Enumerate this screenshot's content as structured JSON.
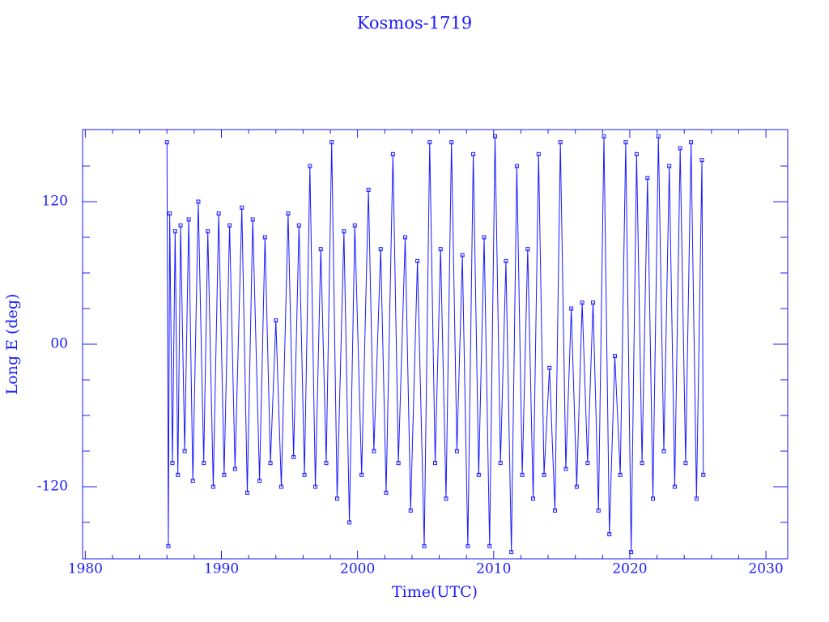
{
  "chart_data": {
    "type": "line",
    "title": "Kosmos-1719",
    "xlabel": "Time(UTC)",
    "ylabel": "Long E (deg)",
    "xlim": [
      1979.8,
      2031.6
    ],
    "ylim": [
      -180.7,
      180.7
    ],
    "xticks": [
      1980,
      1990,
      2000,
      2010,
      2020,
      2030
    ],
    "yticks": [
      -120,
      {
        "value": 0,
        "label": "00"
      },
      120
    ],
    "xminorticks": [
      1982,
      1984,
      1986,
      1988,
      1992,
      1994,
      1996,
      1998,
      2002,
      2004,
      2006,
      2008,
      2012,
      2014,
      2016,
      2018,
      2022,
      2024,
      2026,
      2028
    ],
    "yminorticks": [
      -150,
      -90,
      -60,
      -30,
      30,
      60,
      90,
      150
    ],
    "color": "#1a1aff",
    "x": [
      1986.0,
      1986.1,
      1986.2,
      1986.4,
      1986.6,
      1986.8,
      1987.0,
      1987.3,
      1987.6,
      1987.9,
      1988.3,
      1988.7,
      1989.0,
      1989.4,
      1989.8,
      1990.2,
      1990.6,
      1991.0,
      1991.5,
      1991.9,
      1992.3,
      1992.8,
      1993.2,
      1993.6,
      1994.0,
      1994.4,
      1994.9,
      1995.3,
      1995.7,
      1996.1,
      1996.5,
      1996.9,
      1997.3,
      1997.7,
      1998.1,
      1998.5,
      1999.0,
      1999.4,
      1999.8,
      2000.3,
      2000.8,
      2001.2,
      2001.7,
      2002.1,
      2002.6,
      2003.0,
      2003.5,
      2003.9,
      2004.4,
      2004.9,
      2005.3,
      2005.7,
      2006.1,
      2006.5,
      2006.9,
      2007.3,
      2007.7,
      2008.1,
      2008.5,
      2008.9,
      2009.3,
      2009.7,
      2010.1,
      2010.5,
      2010.9,
      2011.3,
      2011.7,
      2012.1,
      2012.5,
      2012.9,
      2013.3,
      2013.7,
      2014.1,
      2014.5,
      2014.9,
      2015.3,
      2015.7,
      2016.1,
      2016.5,
      2016.9,
      2017.3,
      2017.7,
      2018.1,
      2018.5,
      2018.9,
      2019.3,
      2019.7,
      2020.1,
      2020.5,
      2020.9,
      2021.3,
      2021.7,
      2022.1,
      2022.5,
      2022.9,
      2023.3,
      2023.7,
      2024.1,
      2024.5,
      2024.9,
      2025.3,
      2025.4
    ],
    "values": [
      170,
      -170,
      110,
      -100,
      95,
      -110,
      100,
      -90,
      105,
      -115,
      120,
      -100,
      95,
      -120,
      110,
      -110,
      100,
      -105,
      115,
      -125,
      105,
      -115,
      90,
      -100,
      20,
      -120,
      110,
      -95,
      100,
      -110,
      150,
      -120,
      80,
      -100,
      170,
      -130,
      95,
      -150,
      100,
      -110,
      130,
      -90,
      80,
      -125,
      160,
      -100,
      90,
      -140,
      70,
      -170,
      170,
      -100,
      80,
      -130,
      170,
      -90,
      75,
      -170,
      160,
      -110,
      90,
      -170,
      175,
      -100,
      70,
      -175,
      150,
      -110,
      80,
      -130,
      160,
      -110,
      -20,
      -140,
      170,
      -105,
      30,
      -120,
      35,
      -100,
      35,
      -140,
      175,
      -160,
      -10,
      -110,
      170,
      -175,
      160,
      -100,
      140,
      -130,
      175,
      -90,
      150,
      -120,
      165,
      -100,
      170,
      -130,
      155,
      -110
    ]
  }
}
